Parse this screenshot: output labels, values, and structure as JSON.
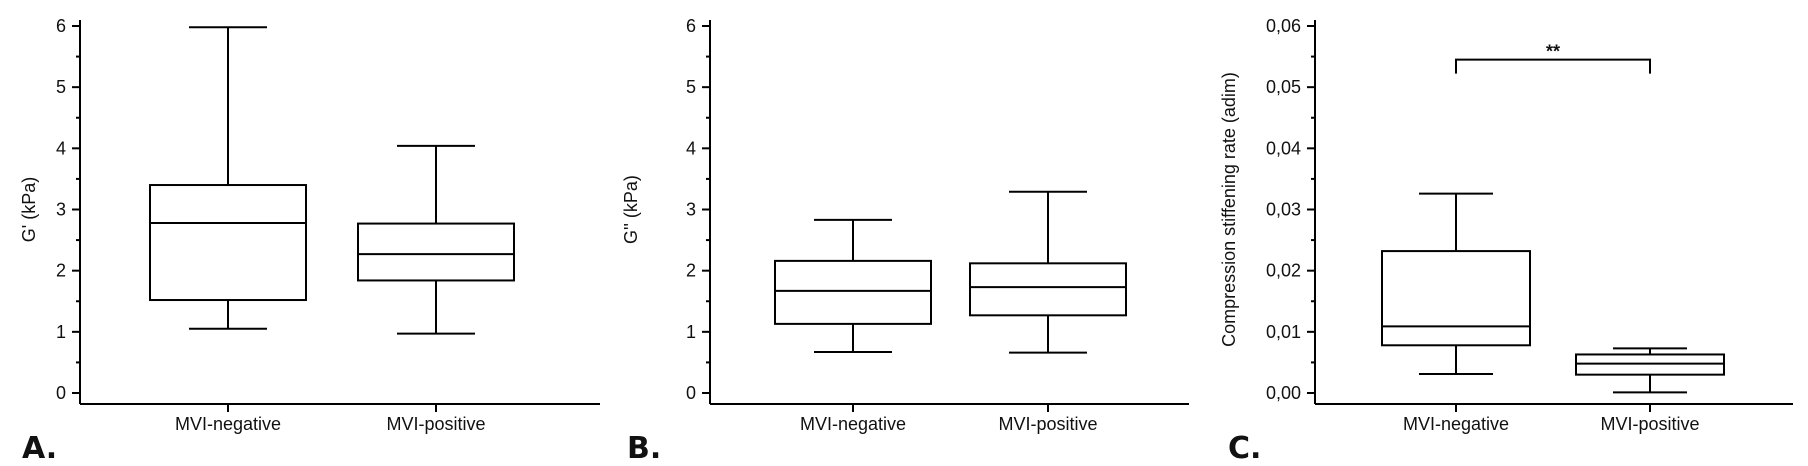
{
  "chart_data": [
    {
      "type": "box",
      "panel_label": "A.",
      "ylabel": "G' (kPa)",
      "ylim": [
        0,
        6
      ],
      "yticks": [
        "0",
        "1",
        "2",
        "3",
        "4",
        "5",
        "6"
      ],
      "categories": [
        "MVI-negative",
        "MVI-positive"
      ],
      "boxes": [
        {
          "min": 1.05,
          "q1": 1.52,
          "median": 2.78,
          "q3": 3.4,
          "max": 5.98
        },
        {
          "min": 0.97,
          "q1": 1.84,
          "median": 2.27,
          "q3": 2.77,
          "max": 4.04
        }
      ]
    },
    {
      "type": "box",
      "panel_label": "B.",
      "ylabel": "G'' (kPa)",
      "ylim": [
        0,
        6
      ],
      "yticks": [
        "0",
        "1",
        "2",
        "3",
        "4",
        "5",
        "6"
      ],
      "categories": [
        "MVI-negative",
        "MVI-positive"
      ],
      "boxes": [
        {
          "min": 0.67,
          "q1": 1.13,
          "median": 1.67,
          "q3": 2.16,
          "max": 2.83
        },
        {
          "min": 0.66,
          "q1": 1.27,
          "median": 1.73,
          "q3": 2.12,
          "max": 3.29
        }
      ]
    },
    {
      "type": "box",
      "panel_label": "C.",
      "ylabel": "Compression stiffening rate (adim)",
      "ylim": [
        0,
        0.06
      ],
      "yticks": [
        "0,00",
        "0,01",
        "0,02",
        "0,03",
        "0,04",
        "0,05",
        "0,06"
      ],
      "categories": [
        "MVI-negative",
        "MVI-positive"
      ],
      "boxes": [
        {
          "min": 0.0031,
          "q1": 0.0078,
          "median": 0.0109,
          "q3": 0.0232,
          "max": 0.0326
        },
        {
          "min": 0.0001,
          "q1": 0.003,
          "median": 0.0048,
          "q3": 0.0063,
          "max": 0.0073
        }
      ],
      "annotation": {
        "text": "**",
        "between": [
          0,
          1
        ],
        "y": 0.0545
      }
    }
  ]
}
